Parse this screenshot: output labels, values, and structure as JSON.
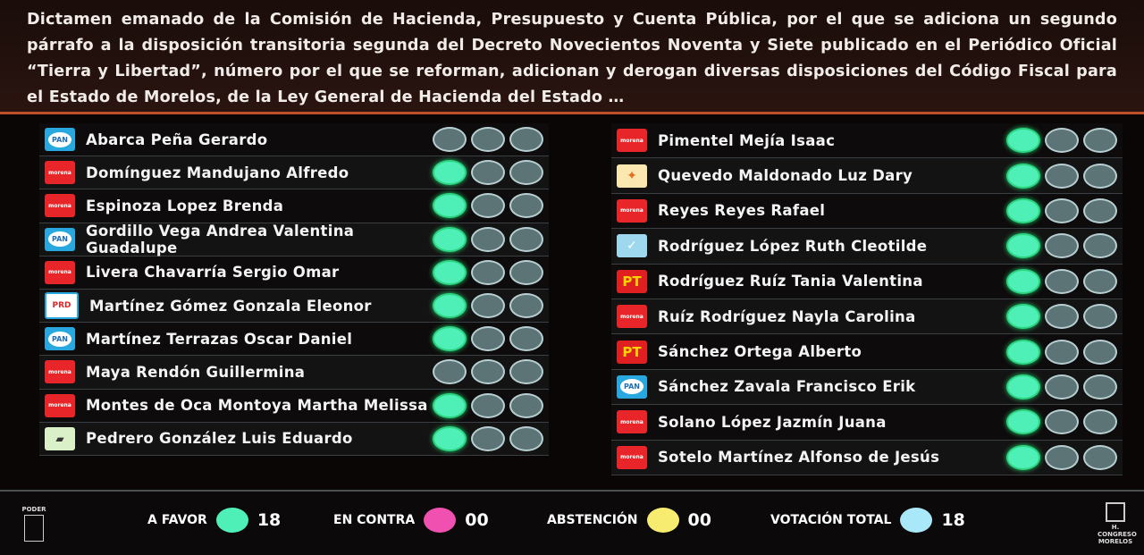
{
  "header": {
    "title": "Dictamen emanado de la Comisión de Hacienda, Presupuesto y Cuenta Pública, por el que se adiciona un segundo párrafo a la disposición transitoria segunda del Decreto Novecientos Noventa y Siete publicado en el Periódico Oficial “Tierra y Libertad”, número por el que se reforman, adicionan y derogan diversas disposiciones del Código Fiscal para el Estado de Morelos, de la Ley General de Hacienda del Estado …"
  },
  "colors": {
    "favor": "#4ff0b8",
    "contra": "#f050b0",
    "abstencion": "#f8ec70",
    "total": "#a8e8f8",
    "empty": "#5d7477"
  },
  "left": [
    {
      "name": "Abarca Peña Gerardo",
      "party": "PAN",
      "vote": "none"
    },
    {
      "name": "Domínguez Mandujano Alfredo",
      "party": "MORENA",
      "vote": "favor"
    },
    {
      "name": "Espinoza Lopez Brenda",
      "party": "MORENA",
      "vote": "favor"
    },
    {
      "name": "Gordillo Vega Andrea Valentina Guadalupe",
      "party": "PAN",
      "vote": "favor"
    },
    {
      "name": "Livera Chavarría Sergio Omar",
      "party": "MORENA",
      "vote": "favor"
    },
    {
      "name": "Martínez Gómez Gonzala Eleonor",
      "party": "PRD",
      "vote": "favor"
    },
    {
      "name": "Martínez Terrazas Oscar Daniel",
      "party": "PAN",
      "vote": "favor"
    },
    {
      "name": "Maya Rendón Guillermina",
      "party": "MORENA",
      "vote": "none"
    },
    {
      "name": "Montes de Oca Montoya Martha Melissa",
      "party": "MORENA",
      "vote": "favor"
    },
    {
      "name": "Pedrero González Luis Eduardo",
      "party": "PES",
      "vote": "favor"
    }
  ],
  "right": [
    {
      "name": "Pimentel Mejía Isaac",
      "party": "MORENA",
      "vote": "favor"
    },
    {
      "name": "Quevedo Maldonado Luz Dary",
      "party": "MC",
      "vote": "favor"
    },
    {
      "name": "Reyes Reyes Rafael",
      "party": "MORENA",
      "vote": "favor"
    },
    {
      "name": "Rodríguez López Ruth Cleotilde",
      "party": "ALT",
      "vote": "favor"
    },
    {
      "name": "Rodríguez Ruíz Tania Valentina",
      "party": "PT",
      "vote": "favor"
    },
    {
      "name": "Ruíz Rodríguez Nayla Carolina",
      "party": "MORENA",
      "vote": "favor"
    },
    {
      "name": "Sánchez Ortega Alberto",
      "party": "PT",
      "vote": "favor"
    },
    {
      "name": "Sánchez Zavala Francisco Erik",
      "party": "PAN",
      "vote": "favor"
    },
    {
      "name": "Solano López Jazmín Juana",
      "party": "MORENA",
      "vote": "favor"
    },
    {
      "name": "Sotelo Martínez Alfonso de Jesús",
      "party": "MORENA",
      "vote": "favor"
    }
  ],
  "footer": {
    "favor": {
      "label": "A FAVOR",
      "value": "18"
    },
    "contra": {
      "label": "EN CONTRA",
      "value": "00"
    },
    "abstencion": {
      "label": "ABSTENCIÓN",
      "value": "00"
    },
    "total": {
      "label": "VOTACIÓN TOTAL",
      "value": "18"
    },
    "left_emblem": "PODER LEGISLATIVO",
    "right_emblem": "H. CONGRESO MORELOS"
  }
}
